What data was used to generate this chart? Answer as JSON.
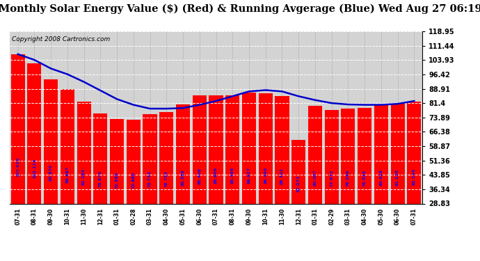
{
  "title": "Monthly Solar Energy Value ($) (Red) & Running Avgerage (Blue) Wed Aug 27 06:19",
  "copyright": "Copyright 2008 Cartronics.com",
  "categories": [
    "07-31",
    "08-31",
    "09-30",
    "10-31",
    "11-30",
    "12-31",
    "01-31",
    "02-28",
    "03-31",
    "04-30",
    "05-31",
    "06-30",
    "07-31",
    "08-31",
    "09-30",
    "10-31",
    "11-30",
    "12-31",
    "01-31",
    "02-29",
    "03-31",
    "04-30",
    "05-30",
    "06-30",
    "07-31"
  ],
  "values": [
    107.01,
    102.114,
    93.87,
    88.867,
    82.185,
    75.875,
    72.969,
    72.886,
    75.753,
    76.753,
    80.589,
    85.406,
    85.606,
    85.496,
    86.927,
    86.49,
    85.101,
    62.073,
    80.007,
    77.972,
    78.548,
    79.028,
    80.428,
    81.125,
    82.149
  ],
  "running_avg": [
    107.01,
    104.0,
    99.5,
    96.5,
    92.5,
    88.0,
    83.5,
    80.5,
    78.5,
    78.5,
    78.8,
    80.5,
    82.5,
    85.0,
    87.5,
    88.2,
    87.5,
    85.0,
    83.0,
    81.4,
    80.7,
    80.5,
    80.5,
    81.0,
    82.5
  ],
  "bar_color": "#ff0000",
  "line_color": "#0000cc",
  "plot_bg_color": "#d3d3d3",
  "background_color": "#ffffff",
  "grid_color": "#ffffff",
  "text_color": "#0000ff",
  "ytick_values": [
    28.83,
    36.34,
    43.85,
    51.36,
    58.87,
    66.38,
    73.89,
    81.4,
    88.91,
    96.42,
    103.93,
    111.44,
    118.95
  ],
  "ymin": 28.83,
  "ymax": 118.95,
  "title_fontsize": 10.5,
  "copyright_fontsize": 6.5,
  "value_fontsize": 4.5
}
